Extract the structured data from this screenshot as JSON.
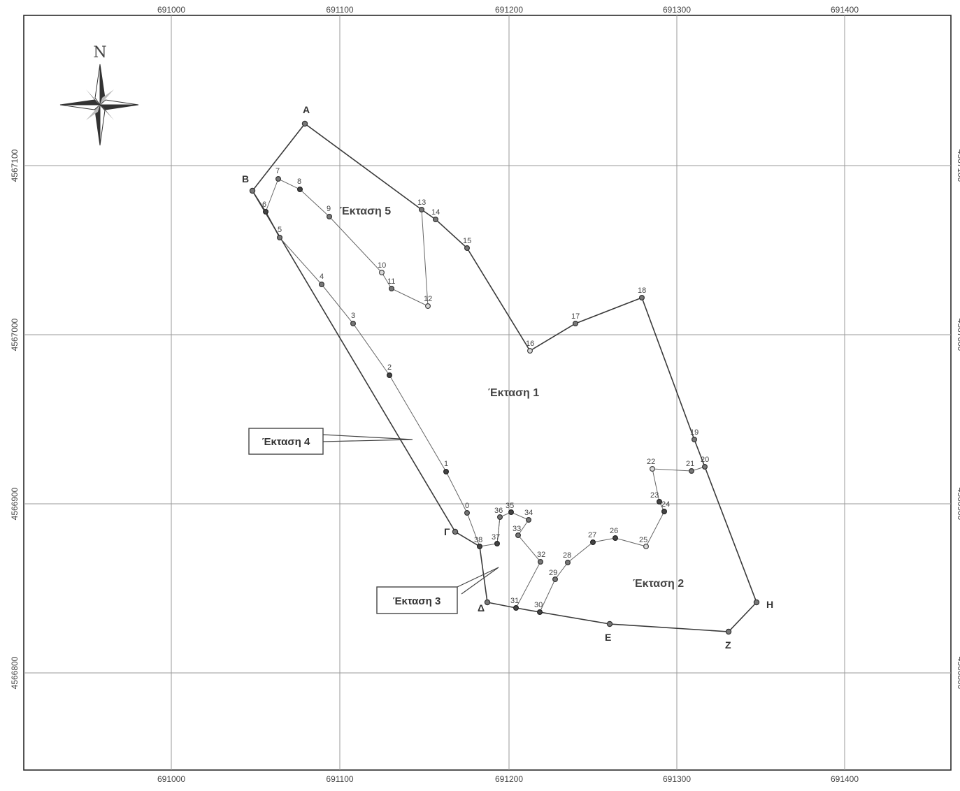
{
  "grid": {
    "x_ticks": [
      "691000",
      "691100",
      "691200",
      "691300",
      "691400"
    ],
    "y_ticks": [
      "4567100",
      "4567000",
      "4566900",
      "4566800"
    ]
  },
  "north_arrow": {
    "letter": "N",
    "icon": "compass-rose-icon"
  },
  "corners": [
    {
      "id": "A",
      "label": "Α"
    },
    {
      "id": "B",
      "label": "Β"
    },
    {
      "id": "G",
      "label": "Γ"
    },
    {
      "id": "D",
      "label": "Δ"
    },
    {
      "id": "E",
      "label": "Ε"
    },
    {
      "id": "Z",
      "label": "Ζ"
    },
    {
      "id": "H",
      "label": "Η"
    }
  ],
  "points": [
    "0",
    "1",
    "2",
    "3",
    "4",
    "5",
    "6",
    "7",
    "8",
    "9",
    "10",
    "11",
    "12",
    "13",
    "14",
    "15",
    "16",
    "17",
    "18",
    "19",
    "20",
    "21",
    "22",
    "23",
    "24",
    "25",
    "26",
    "27",
    "28",
    "29",
    "30",
    "31",
    "32",
    "33",
    "34",
    "35",
    "36",
    "37",
    "38"
  ],
  "areas": {
    "area1": "Έκταση 1",
    "area2": "Έκταση 2",
    "area5": "Έκταση 5"
  },
  "callouts": {
    "area4": "Έκταση 4",
    "area3": "Έκταση 3"
  }
}
